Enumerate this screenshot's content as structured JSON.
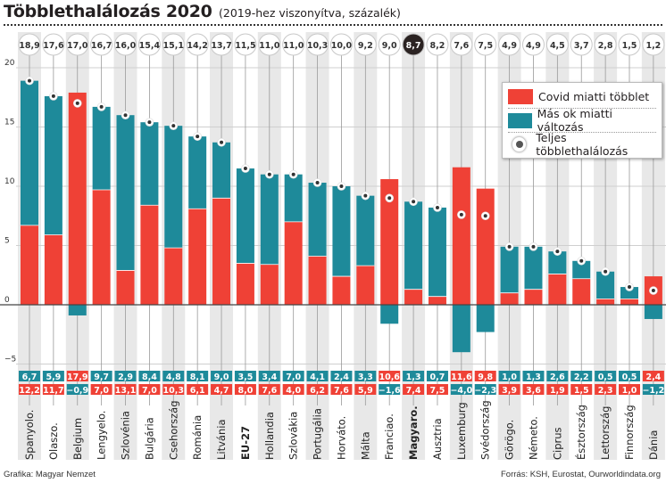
{
  "header": {
    "title": "Többlethalálozás 2020",
    "subtitle": "(2019-hez viszonyítva, százalék)"
  },
  "legend": {
    "covid_label": "Covid miatti többlet",
    "other_label": "Más ok miatti változás",
    "total_label": "Teljes többlethalálozás"
  },
  "footer": {
    "credit": "Grafika: Magyar Nemzet",
    "source": "Forrás: KSH, Eurostat, Ourworldindata.org"
  },
  "colors": {
    "covid": "#ef4136",
    "other": "#1e8a9a",
    "stripe": "#e8e8e8",
    "highlight_bubble": "#2b2322"
  },
  "chart_data": {
    "type": "bar",
    "stacked": true,
    "title": "Többlethalálozás 2020",
    "subtitle": "(2019-hez viszonyítva, százalék)",
    "xlabel": "",
    "ylabel": "",
    "ylim": [
      -5,
      20
    ],
    "yticks": [
      "−5",
      "0",
      "5",
      "10",
      "15",
      "20"
    ],
    "ytick_values": [
      -5,
      0,
      5,
      10,
      15,
      20
    ],
    "grid": true,
    "legend_position": "top-right",
    "categories": [
      "Spanyolo.",
      "Olaszo.",
      "Belgium",
      "Lengyelo.",
      "Szlovénia",
      "Bulgária",
      "Csehország",
      "Románia",
      "Litvánia",
      "EU-27",
      "Hollandia",
      "Szlovákia",
      "Portugália",
      "Horváto.",
      "Málta",
      "Franciao.",
      "Magyaro.",
      "Ausztria",
      "Luxemburg",
      "Svédország",
      "Görögo.",
      "Németo.",
      "Ciprus",
      "Észtország",
      "Lettország",
      "Finnország",
      "Dánia"
    ],
    "bold_categories": [
      "EU-27",
      "Magyaro."
    ],
    "highlight_category": "Magyaro.",
    "series": [
      {
        "name": "Covid miatti többlet",
        "values": [
          6.7,
          5.9,
          17.9,
          9.7,
          2.9,
          8.4,
          4.8,
          8.1,
          9.0,
          3.5,
          3.4,
          7.0,
          4.1,
          2.4,
          3.3,
          10.6,
          1.3,
          0.7,
          11.6,
          9.8,
          1.0,
          1.3,
          2.6,
          2.2,
          0.5,
          0.5,
          2.4
        ]
      },
      {
        "name": "Más ok miatti változás",
        "values": [
          12.2,
          11.7,
          -0.9,
          7.0,
          13.1,
          7.0,
          10.3,
          6.1,
          4.7,
          8.0,
          7.6,
          4.0,
          6.2,
          7.6,
          5.9,
          -1.6,
          7.4,
          7.5,
          -4.0,
          -2.3,
          3.9,
          3.6,
          1.9,
          1.5,
          2.3,
          1.0,
          -1.2
        ]
      },
      {
        "name": "Teljes többlethalálozás",
        "values": [
          18.9,
          17.6,
          17.0,
          16.7,
          16.0,
          15.4,
          15.1,
          14.2,
          13.7,
          11.5,
          11.0,
          11.0,
          10.3,
          10.0,
          9.2,
          9.0,
          8.7,
          8.2,
          7.6,
          7.5,
          4.9,
          4.9,
          4.5,
          3.7,
          2.8,
          1.5,
          1.2
        ]
      }
    ],
    "table_rows": {
      "top": [
        {
          "v": "6,7",
          "s": "other"
        },
        {
          "v": "5,9",
          "s": "other"
        },
        {
          "v": "17,9",
          "s": "covid"
        },
        {
          "v": "9,7",
          "s": "other"
        },
        {
          "v": "2,9",
          "s": "other"
        },
        {
          "v": "8,4",
          "s": "other"
        },
        {
          "v": "4,8",
          "s": "other"
        },
        {
          "v": "8,1",
          "s": "other"
        },
        {
          "v": "9,0",
          "s": "other"
        },
        {
          "v": "3,5",
          "s": "other"
        },
        {
          "v": "3,4",
          "s": "other"
        },
        {
          "v": "7,0",
          "s": "other"
        },
        {
          "v": "4,1",
          "s": "other"
        },
        {
          "v": "2,4",
          "s": "other"
        },
        {
          "v": "3,3",
          "s": "other"
        },
        {
          "v": "10,6",
          "s": "covid"
        },
        {
          "v": "1,3",
          "s": "other"
        },
        {
          "v": "0,7",
          "s": "other"
        },
        {
          "v": "11,6",
          "s": "covid"
        },
        {
          "v": "9,8",
          "s": "covid"
        },
        {
          "v": "1,0",
          "s": "other"
        },
        {
          "v": "1,3",
          "s": "other"
        },
        {
          "v": "2,6",
          "s": "other"
        },
        {
          "v": "2,2",
          "s": "other"
        },
        {
          "v": "0,5",
          "s": "other"
        },
        {
          "v": "0,5",
          "s": "other"
        },
        {
          "v": "2,4",
          "s": "covid"
        }
      ],
      "bottom": [
        {
          "v": "12,2",
          "s": "covid"
        },
        {
          "v": "11,7",
          "s": "covid"
        },
        {
          "v": "−0,9",
          "s": "other"
        },
        {
          "v": "7,0",
          "s": "covid"
        },
        {
          "v": "13,1",
          "s": "covid"
        },
        {
          "v": "7,0",
          "s": "covid"
        },
        {
          "v": "10,3",
          "s": "covid"
        },
        {
          "v": "6,1",
          "s": "covid"
        },
        {
          "v": "4,7",
          "s": "covid"
        },
        {
          "v": "8,0",
          "s": "covid"
        },
        {
          "v": "7,6",
          "s": "covid"
        },
        {
          "v": "4,0",
          "s": "covid"
        },
        {
          "v": "6,2",
          "s": "covid"
        },
        {
          "v": "7,6",
          "s": "covid"
        },
        {
          "v": "5,9",
          "s": "covid"
        },
        {
          "v": "−1,6",
          "s": "other"
        },
        {
          "v": "7,4",
          "s": "covid"
        },
        {
          "v": "7,5",
          "s": "covid"
        },
        {
          "v": "−4,0",
          "s": "other"
        },
        {
          "v": "−2,3",
          "s": "other"
        },
        {
          "v": "3,9",
          "s": "covid"
        },
        {
          "v": "3,6",
          "s": "covid"
        },
        {
          "v": "1,9",
          "s": "covid"
        },
        {
          "v": "1,5",
          "s": "covid"
        },
        {
          "v": "2,3",
          "s": "covid"
        },
        {
          "v": "1,0",
          "s": "covid"
        },
        {
          "v": "−1,2",
          "s": "other"
        }
      ]
    },
    "total_labels": [
      "18,9",
      "17,6",
      "17,0",
      "16,7",
      "16,0",
      "15,4",
      "15,1",
      "14,2",
      "13,7",
      "11,5",
      "11,0",
      "11,0",
      "10,3",
      "10,0",
      "9,2",
      "9,0",
      "8,7",
      "8,2",
      "7,6",
      "7,5",
      "4,9",
      "4,9",
      "4,5",
      "3,7",
      "2,8",
      "1,5",
      "1,2"
    ]
  }
}
